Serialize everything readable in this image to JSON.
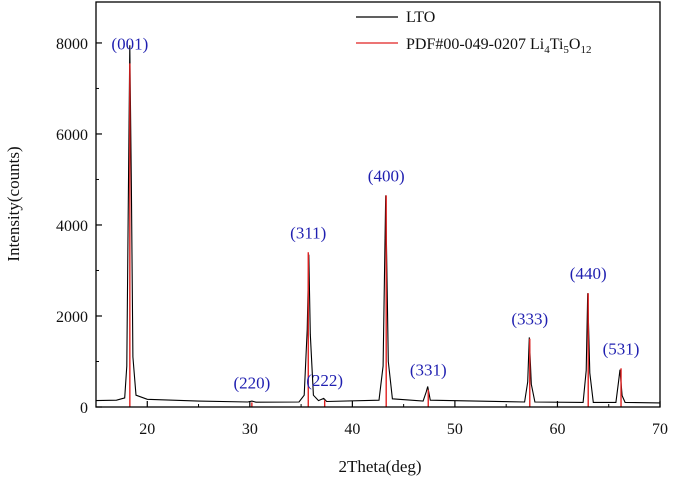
{
  "chart_data": {
    "type": "line",
    "xlabel": "2Theta(deg)",
    "ylabel": "Intensity(counts)",
    "xlim": [
      15,
      70
    ],
    "ylim": [
      0,
      8900
    ],
    "x_ticks": [
      20,
      30,
      40,
      50,
      60,
      70
    ],
    "y_ticks": [
      0,
      2000,
      4000,
      6000,
      8000
    ],
    "grid": false,
    "legend_position": "top-right",
    "series": [
      {
        "name": "LTO",
        "color": "#000000",
        "baseline": [
          [
            15,
            140
          ],
          [
            17,
            150
          ],
          [
            17.8,
            200
          ],
          [
            18.0,
            900
          ],
          [
            18.15,
            4500
          ],
          [
            18.3,
            7950
          ],
          [
            18.45,
            4800
          ],
          [
            18.6,
            1100
          ],
          [
            18.9,
            260
          ],
          [
            20,
            170
          ],
          [
            25,
            130
          ],
          [
            29.8,
            110
          ],
          [
            30.2,
            130
          ],
          [
            30.6,
            105
          ],
          [
            34.8,
            110
          ],
          [
            35.3,
            260
          ],
          [
            35.6,
            1700
          ],
          [
            35.75,
            3350
          ],
          [
            35.9,
            1600
          ],
          [
            36.2,
            260
          ],
          [
            36.7,
            140
          ],
          [
            37.2,
            190
          ],
          [
            37.5,
            120
          ],
          [
            42.6,
            150
          ],
          [
            43.0,
            900
          ],
          [
            43.25,
            4650
          ],
          [
            43.5,
            1000
          ],
          [
            43.9,
            180
          ],
          [
            46.9,
            130
          ],
          [
            47.2,
            330
          ],
          [
            47.35,
            450
          ],
          [
            47.6,
            150
          ],
          [
            56.8,
            110
          ],
          [
            57.1,
            550
          ],
          [
            57.25,
            1530
          ],
          [
            57.45,
            500
          ],
          [
            57.8,
            110
          ],
          [
            62.5,
            100
          ],
          [
            62.8,
            800
          ],
          [
            62.95,
            2500
          ],
          [
            63.15,
            750
          ],
          [
            63.5,
            100
          ],
          [
            65.7,
            100
          ],
          [
            65.95,
            550
          ],
          [
            66.1,
            820
          ],
          [
            66.3,
            250
          ],
          [
            66.6,
            100
          ],
          [
            70,
            90
          ]
        ]
      },
      {
        "name": "PDF#00-049-0207 Li4Ti5O12",
        "color": "#e02020",
        "sticks": [
          {
            "x": 18.3,
            "y": 7550,
            "hkl": "(001)"
          },
          {
            "x": 30.2,
            "y": 100,
            "hkl": "(220)"
          },
          {
            "x": 35.7,
            "y": 3400,
            "hkl": "(311)"
          },
          {
            "x": 37.3,
            "y": 150,
            "hkl": "(222)"
          },
          {
            "x": 43.3,
            "y": 4650,
            "hkl": "(400)"
          },
          {
            "x": 47.4,
            "y": 380,
            "hkl": "(331)"
          },
          {
            "x": 57.3,
            "y": 1500,
            "hkl": "(333)"
          },
          {
            "x": 63.0,
            "y": 2500,
            "hkl": "(440)"
          },
          {
            "x": 66.2,
            "y": 850,
            "hkl": "(531)"
          }
        ]
      }
    ]
  },
  "legend": {
    "lto": "LTO",
    "pdf_prefix": "PDF#00-049-0207 Li",
    "pdf_s1": "4",
    "pdf_mid1": "Ti",
    "pdf_s2": "5",
    "pdf_mid2": "O",
    "pdf_s3": "12"
  }
}
